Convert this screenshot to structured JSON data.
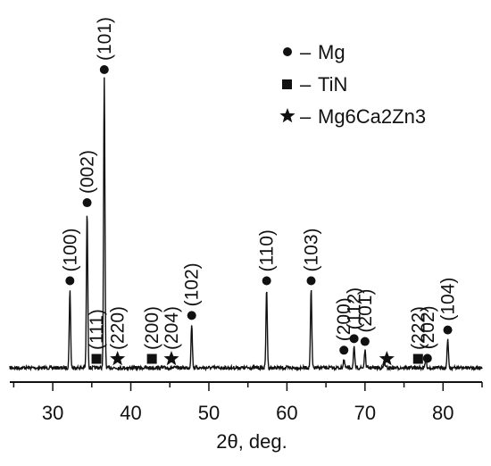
{
  "chart_data": {
    "type": "line",
    "xlabel": "2θ, deg.",
    "ylabel": "",
    "xlim": [
      24.5,
      85
    ],
    "x_ticks": [
      30,
      40,
      50,
      60,
      70,
      80
    ],
    "y_axis": "none (relative intensity)",
    "series": [
      {
        "values_description": "XRD diffractogram",
        "peaks": [
          {
            "x": 32.2,
            "intensity": 27
          },
          {
            "x": 34.4,
            "intensity": 54
          },
          {
            "x": 36.6,
            "intensity": 100
          },
          {
            "x": 47.8,
            "intensity": 15
          },
          {
            "x": 57.4,
            "intensity": 27
          },
          {
            "x": 63.1,
            "intensity": 27
          },
          {
            "x": 67.3,
            "intensity": 3
          },
          {
            "x": 68.6,
            "intensity": 7
          },
          {
            "x": 70.0,
            "intensity": 6
          },
          {
            "x": 72.5,
            "intensity": 2
          },
          {
            "x": 77.8,
            "intensity": 3
          },
          {
            "x": 80.6,
            "intensity": 10
          }
        ]
      }
    ],
    "legend": [
      {
        "symbol": "circle",
        "label": "Mg"
      },
      {
        "symbol": "square",
        "label": "TiN"
      },
      {
        "symbol": "star",
        "label": "Mg6Ca2Zn3"
      }
    ],
    "legend_dash": "–",
    "legend_placement": "top-right",
    "annotations": [
      {
        "x": 32.2,
        "phase": "Mg",
        "symbol": "circle",
        "label": "(100)"
      },
      {
        "x": 34.4,
        "phase": "Mg",
        "symbol": "circle",
        "label": "(002)"
      },
      {
        "x": 36.6,
        "phase": "Mg",
        "symbol": "circle",
        "label": "(101)"
      },
      {
        "x": 35.6,
        "phase": "TiN",
        "symbol": "square",
        "label": "(111)"
      },
      {
        "x": 38.3,
        "phase": "Mg6Ca2Zn3",
        "symbol": "star",
        "label": "(220)"
      },
      {
        "x": 42.7,
        "phase": "TiN",
        "symbol": "square",
        "label": "(200)"
      },
      {
        "x": 45.2,
        "phase": "Mg6Ca2Zn3",
        "symbol": "star",
        "label": "(204)"
      },
      {
        "x": 47.8,
        "phase": "Mg",
        "symbol": "circle",
        "label": "(102)"
      },
      {
        "x": 57.4,
        "phase": "Mg",
        "symbol": "circle",
        "label": "(110)"
      },
      {
        "x": 63.1,
        "phase": "Mg",
        "symbol": "circle",
        "label": "(103)"
      },
      {
        "x": 67.3,
        "phase": "Mg",
        "symbol": "circle",
        "label": "(200)"
      },
      {
        "x": 68.6,
        "phase": "Mg",
        "symbol": "circle",
        "label": "(112)"
      },
      {
        "x": 70.0,
        "phase": "Mg",
        "symbol": "circle",
        "label": "(201)"
      },
      {
        "x": 72.8,
        "phase": "Mg6Ca2Zn3",
        "symbol": "star",
        "label": ""
      },
      {
        "x": 76.8,
        "phase": "TiN",
        "symbol": "square",
        "label": "(222)"
      },
      {
        "x": 78.0,
        "phase": "Mg",
        "symbol": "circle",
        "label": "(202)"
      },
      {
        "x": 80.6,
        "phase": "Mg",
        "symbol": "circle",
        "label": "(104)"
      }
    ],
    "grid": false
  }
}
